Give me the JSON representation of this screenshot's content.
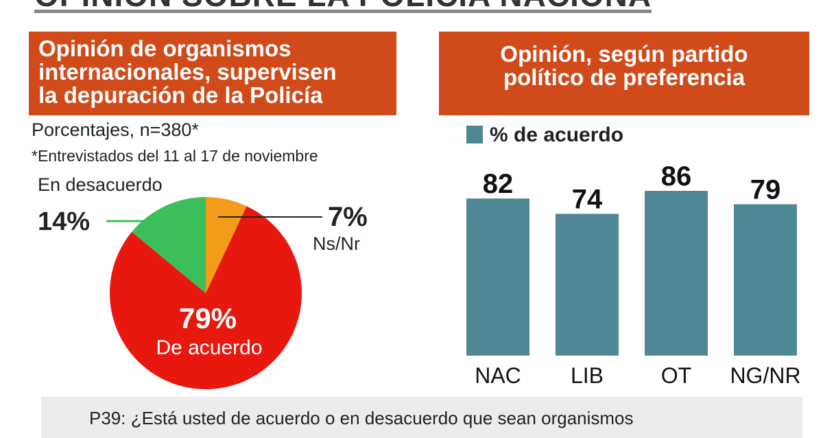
{
  "top_title": "OPINIÓN SOBRE LA POLICÍA NACIONAL",
  "left_panel": {
    "header_lines": [
      "Opinión de organismos",
      "internacionales, supervisen",
      "la depuración de la Policía"
    ],
    "note1": "Porcentajes, n=380*",
    "note2": "*Entrevistados del 11 al 17 de noviembre"
  },
  "right_panel": {
    "header_lines": [
      "Opinión, según partido",
      "político de preferencia"
    ],
    "legend": "% de acuerdo"
  },
  "footer": "P39: ¿Está usted de acuerdo o en desacuerdo que sean organismos",
  "chart_data": [
    {
      "type": "pie",
      "title": "Opinión de organismos internacionales, supervisen la depuración de la Policía",
      "subtitle": "Porcentajes, n=380*",
      "slices": [
        {
          "label": "Ns/Nr",
          "value": 7,
          "value_label": "7%",
          "color": "#f39c1a"
        },
        {
          "label": "De acuerdo",
          "value": 79,
          "value_label": "79%",
          "color": "#e8180f"
        },
        {
          "label": "En desacuerdo",
          "value": 14,
          "value_label": "14%",
          "color": "#3bbf5a"
        }
      ],
      "slice_order": "clockwise from top"
    },
    {
      "type": "bar",
      "title": "Opinión, según partido político de preferencia",
      "categories": [
        "NAC",
        "LIB",
        "OT",
        "NG/NR"
      ],
      "series": [
        {
          "name": "% de acuerdo",
          "values": [
            82,
            74,
            86,
            79
          ],
          "color": "#4f8795"
        }
      ],
      "ylim": [
        0,
        100
      ],
      "grid": false,
      "legend_position": "top-left"
    }
  ]
}
